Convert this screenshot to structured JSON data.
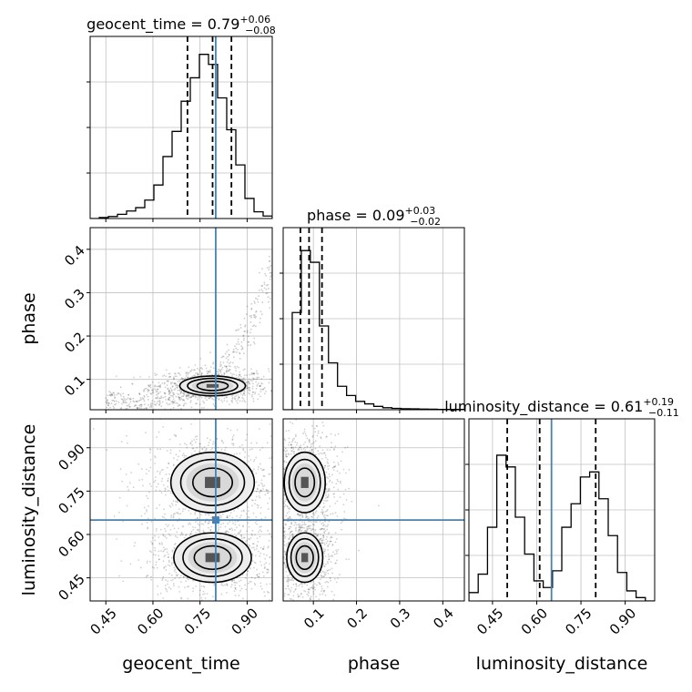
{
  "colors": {
    "truth": "#4682b4",
    "hist": "#000000",
    "grid": "#c0c0c0",
    "quantile": "#000000"
  },
  "chart_data": {
    "type": "corner",
    "grid": true,
    "parameters": [
      {
        "key": "geocent_time",
        "label": "geocent_time",
        "range": [
          0.4,
          0.98
        ],
        "ticks": [
          "0.45",
          "0.60",
          "0.75",
          "0.90"
        ],
        "tick_values": [
          0.45,
          0.6,
          0.75,
          0.9
        ],
        "truth": 0.8,
        "title": {
          "name": "geocent_time",
          "median": "0.79",
          "plus": "+0.06",
          "minus": "−0.08"
        },
        "quantiles": [
          0.71,
          0.79,
          0.85
        ]
      },
      {
        "key": "phase",
        "label": "phase",
        "range": [
          0.03,
          0.45
        ],
        "ticks": [
          "0.1",
          "0.2",
          "0.3",
          "0.4"
        ],
        "tick_values": [
          0.1,
          0.2,
          0.3,
          0.4
        ],
        "truth": null,
        "title": {
          "name": "phase",
          "median": "0.09",
          "plus": "+0.03",
          "minus": "−0.02"
        },
        "quantiles": [
          0.07,
          0.09,
          0.12
        ]
      },
      {
        "key": "luminosity_distance",
        "label": "luminosity_distance",
        "range": [
          0.37,
          1.0
        ],
        "ticks": [
          "0.45",
          "0.60",
          "0.75",
          "0.90"
        ],
        "tick_values": [
          0.45,
          0.6,
          0.75,
          0.9
        ],
        "truth": 0.65,
        "title": {
          "name": "luminosity_distance",
          "median": "0.61",
          "plus": "+0.19",
          "minus": "−0.11"
        },
        "quantiles": [
          0.5,
          0.61,
          0.8
        ]
      }
    ],
    "histograms": {
      "geocent_time": [
        0,
        0.006,
        0.012,
        0.025,
        0.045,
        0.065,
        0.11,
        0.2,
        0.37,
        0.52,
        0.7,
        0.84,
        0.98,
        0.92,
        0.72,
        0.53,
        0.32,
        0.12,
        0.04,
        0.015
      ],
      "phase": [
        0,
        0.58,
        0.95,
        0.88,
        0.5,
        0.28,
        0.14,
        0.085,
        0.05,
        0.035,
        0.02,
        0.012,
        0.008,
        0.006,
        0.005,
        0.004,
        0.003,
        0.002,
        0.002,
        0.002
      ],
      "luminosity_distance": [
        0.05,
        0.16,
        0.44,
        0.87,
        0.8,
        0.5,
        0.28,
        0.12,
        0.08,
        0.18,
        0.44,
        0.58,
        0.74,
        0.77,
        0.61,
        0.39,
        0.17,
        0.06,
        0.02,
        0
      ]
    },
    "correlations": [
      {
        "x": "geocent_time",
        "y": "phase",
        "modes": [
          {
            "cx": 0.79,
            "cy": 0.085,
            "sx": 0.055,
            "sy": 0.012
          }
        ],
        "curved_tail": true
      },
      {
        "x": "geocent_time",
        "y": "luminosity_distance",
        "modes": [
          {
            "cx": 0.79,
            "cy": 0.78,
            "sx": 0.07,
            "sy": 0.055
          },
          {
            "cx": 0.79,
            "cy": 0.52,
            "sx": 0.065,
            "sy": 0.045
          }
        ]
      },
      {
        "x": "phase",
        "y": "luminosity_distance",
        "modes": [
          {
            "cx": 0.08,
            "cy": 0.78,
            "sx": 0.025,
            "sy": 0.055
          },
          {
            "cx": 0.08,
            "cy": 0.52,
            "sx": 0.022,
            "sy": 0.045
          }
        ]
      }
    ],
    "y_axis_labels": [
      "phase",
      "luminosity_distance"
    ],
    "x_axis_labels": [
      "geocent_time",
      "phase",
      "luminosity_distance"
    ]
  }
}
